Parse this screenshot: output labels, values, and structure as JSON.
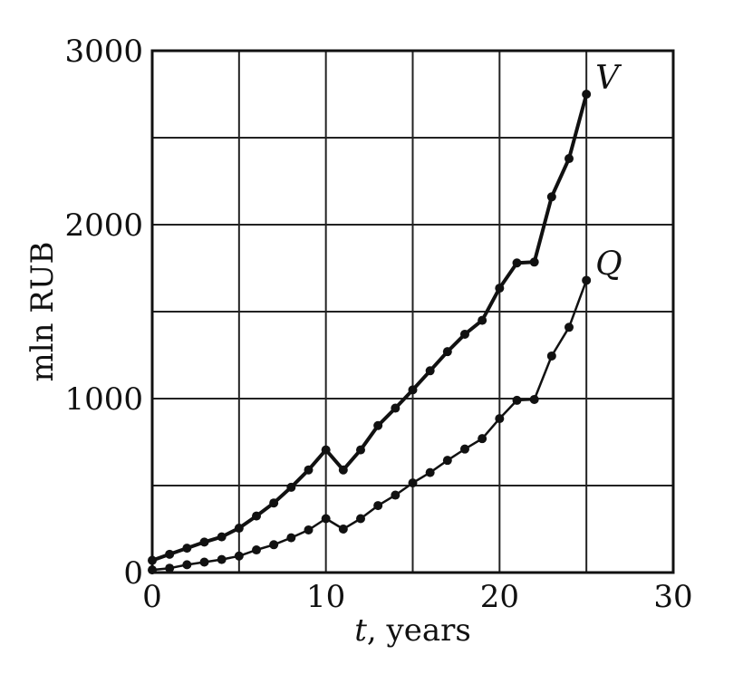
{
  "chart_data": {
    "type": "line",
    "xlabel_var": "t",
    "xlabel_rest": ", years",
    "ylabel": "mln RUB",
    "xlim": [
      0,
      30
    ],
    "ylim": [
      0,
      3000
    ],
    "x_ticks": [
      0,
      10,
      20,
      30
    ],
    "y_ticks": [
      0,
      1000,
      2000,
      3000
    ],
    "x_grid_step": 5,
    "y_grid_step": 500,
    "grid": true,
    "x": [
      0,
      1,
      2,
      3,
      4,
      5,
      6,
      7,
      8,
      9,
      10,
      11,
      12,
      13,
      14,
      15,
      16,
      17,
      18,
      19,
      20,
      21,
      22,
      23,
      24,
      25
    ],
    "series": [
      {
        "name": "V",
        "values": [
          70,
          105,
          140,
          175,
          205,
          255,
          325,
          400,
          490,
          590,
          705,
          590,
          705,
          845,
          945,
          1050,
          1160,
          1270,
          1370,
          1450,
          1635,
          1780,
          1785,
          2160,
          2380,
          2750
        ],
        "color": "#111111"
      },
      {
        "name": "Q",
        "values": [
          15,
          25,
          45,
          60,
          75,
          95,
          130,
          160,
          200,
          245,
          310,
          250,
          310,
          385,
          445,
          515,
          575,
          645,
          710,
          770,
          885,
          990,
          995,
          1245,
          1410,
          1680
        ],
        "color": "#111111"
      }
    ]
  }
}
